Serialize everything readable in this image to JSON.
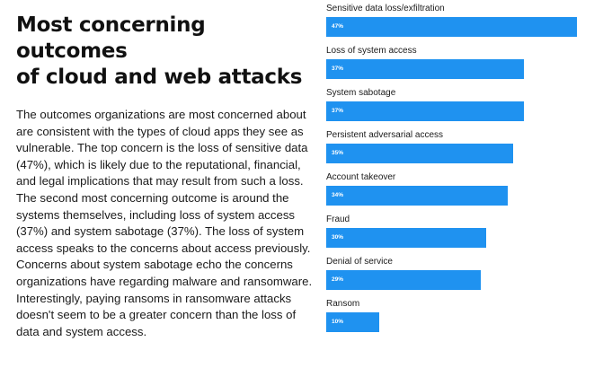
{
  "article": {
    "title_line1": "Most concerning outcomes",
    "title_line2": "of cloud and web attacks",
    "body": "The outcomes organizations are most concerned about are consistent with the types of cloud apps they see as vulnerable. The top concern is the loss of sensitive data (47%), which is likely due to the reputational, financial, and legal implications that may result from such a loss. The second most concerning outcome is around the systems themselves, including loss of system access (37%) and system sabotage (37%). The loss of system access speaks to the concerns about access previously. Concerns about system sabotage echo the concerns organizations have regarding malware and ransomware. Interestingly, paying ransoms in ransomware attacks doesn't seem to be a greater concern than the loss of data and system access."
  },
  "colors": {
    "bar": "#1f92f0",
    "bar_text": "#ffffff"
  },
  "chart_data": {
    "type": "bar",
    "orientation": "horizontal",
    "categories": [
      "Sensitive data loss/exfiltration",
      "Loss of system access",
      "System sabotage",
      "Persistent adversarial access",
      "Account takeover",
      "Fraud",
      "Denial of service",
      "Ransom"
    ],
    "values": [
      47,
      37,
      37,
      35,
      34,
      30,
      29,
      10
    ],
    "value_labels": [
      "47%",
      "37%",
      "37%",
      "35%",
      "34%",
      "30%",
      "29%",
      "10%"
    ],
    "xlim": [
      0,
      47
    ],
    "grid": false,
    "legend": "none"
  }
}
